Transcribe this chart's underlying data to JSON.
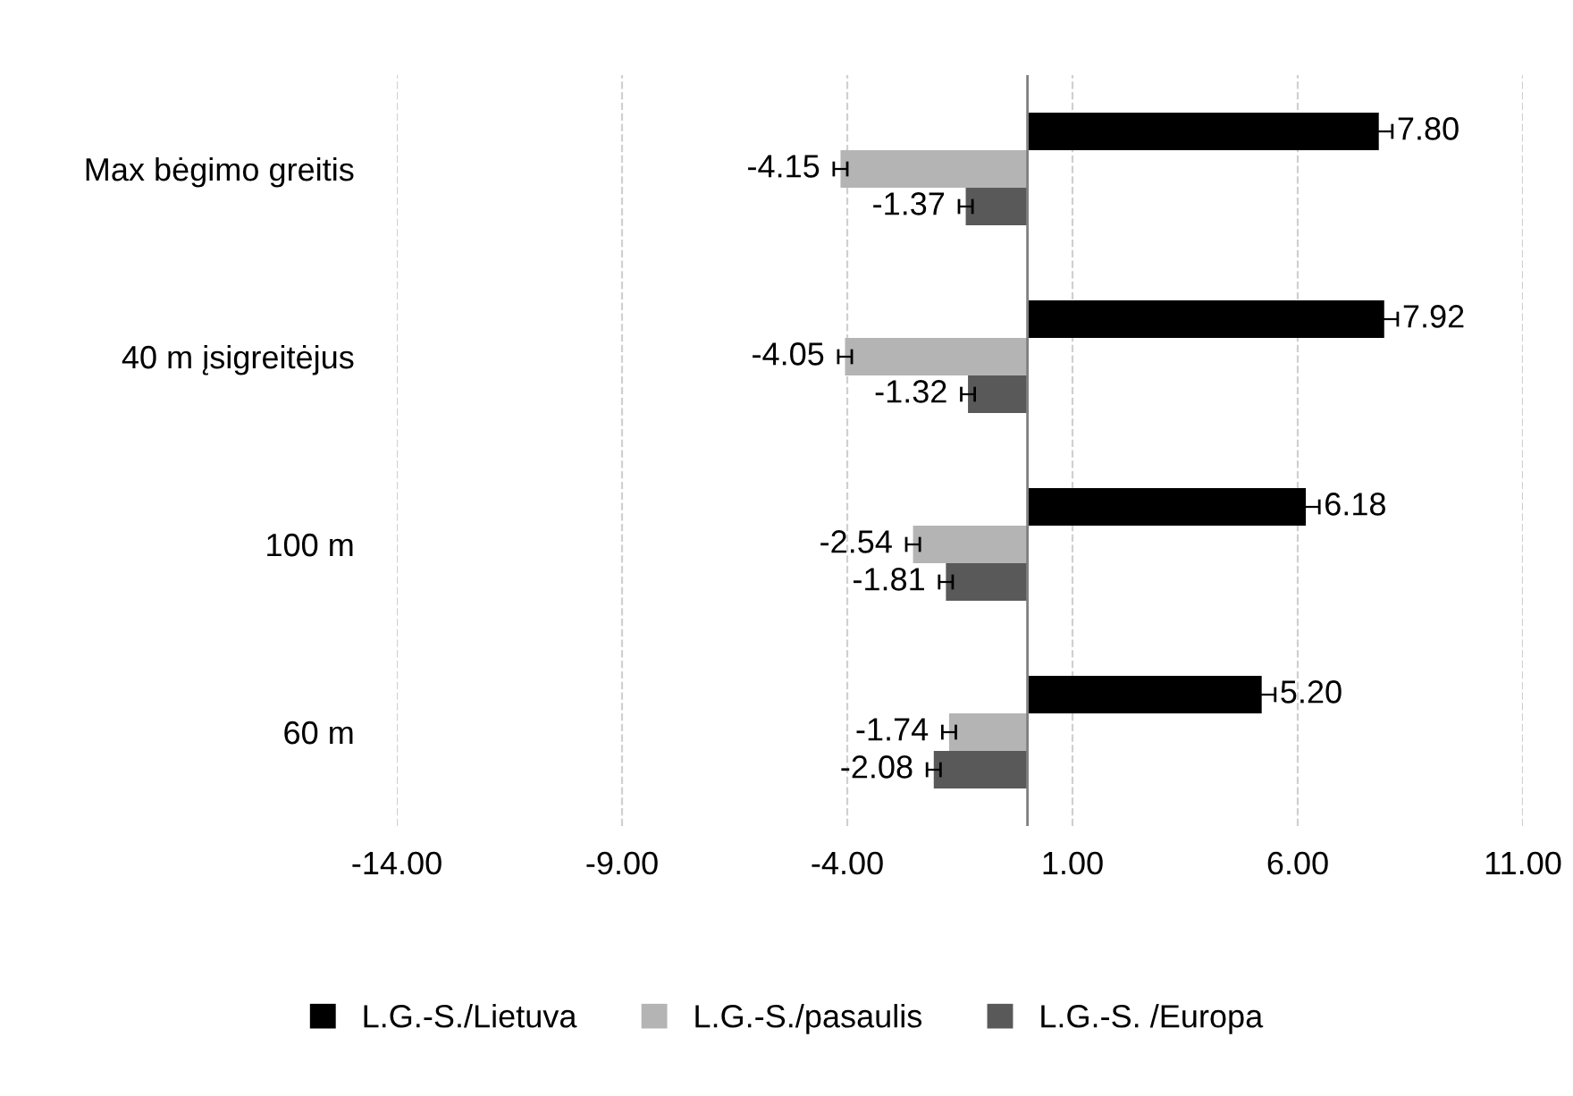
{
  "chart_data": {
    "type": "bar",
    "orientation": "horizontal",
    "categories": [
      "Max bėgimo greitis",
      "40 m įsigreitėjus",
      "100 m",
      "60 m"
    ],
    "series": [
      {
        "name": "L.G.-S./Lietuva",
        "color": "#000000",
        "values": [
          7.8,
          7.92,
          6.18,
          5.2
        ],
        "value_labels": [
          "7.80",
          "7.92",
          "6.18",
          "5.20"
        ],
        "errors": [
          0.3,
          0.3,
          0.3,
          0.3
        ]
      },
      {
        "name": "L.G.-S./pasaulis",
        "color": "#b4b4b4",
        "values": [
          -4.15,
          -4.05,
          -2.54,
          -1.74
        ],
        "value_labels": [
          "-4.15",
          "-4.05",
          "-2.54",
          "-1.74"
        ],
        "errors": [
          0.15,
          0.15,
          0.15,
          0.15
        ]
      },
      {
        "name": "L.G.-S. /Europa",
        "color": "#595959",
        "values": [
          -1.37,
          -1.32,
          -1.81,
          -2.08
        ],
        "value_labels": [
          "-1.37",
          "-1.32",
          "-1.81",
          "-2.08"
        ],
        "errors": [
          0.15,
          0.15,
          0.15,
          0.15
        ]
      }
    ],
    "xlim": [
      -14,
      11
    ],
    "xticks": [
      {
        "value": -14,
        "label": "-14.00"
      },
      {
        "value": -9,
        "label": "-9.00"
      },
      {
        "value": -4,
        "label": "-4.00"
      },
      {
        "value": 1,
        "label": "1.00"
      },
      {
        "value": 6,
        "label": "6.00"
      },
      {
        "value": 11,
        "label": "11.00"
      }
    ],
    "grid": "x",
    "legend": "bottom"
  }
}
